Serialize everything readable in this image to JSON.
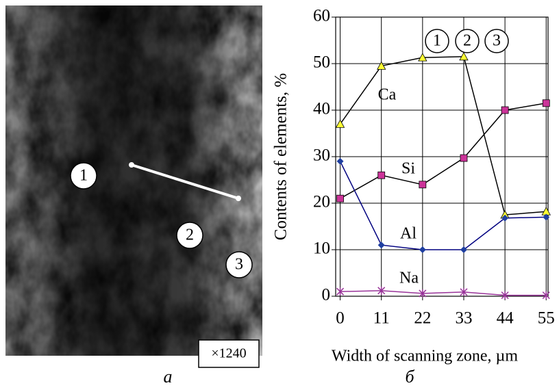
{
  "micrograph": {
    "markers": [
      "1",
      "2",
      "3"
    ],
    "magnification": "×1240"
  },
  "panel_labels": [
    "а",
    "б"
  ],
  "chart_data": {
    "type": "line",
    "y_label": "Contents of elements, %",
    "x_label": "Width of scanning zone, µm",
    "annotations": [
      "1",
      "2",
      "3"
    ],
    "x": [
      0,
      11,
      22,
      33,
      44,
      55
    ],
    "xlim": [
      -1.2,
      55.5
    ],
    "xticks": [
      0,
      11,
      22,
      33,
      44,
      55
    ],
    "ylim": [
      0,
      60
    ],
    "yticks": [
      0,
      10,
      20,
      30,
      40,
      50,
      60
    ],
    "grid": true,
    "series": [
      {
        "name": "Ca",
        "color": "#000000",
        "marker": "triangle",
        "marker_color": "#ffff33",
        "values": [
          37,
          49.5,
          51.3,
          51.5,
          17.5,
          18.2
        ]
      },
      {
        "name": "Si",
        "color": "#000000",
        "marker": "square",
        "marker_color": "#cc3399",
        "values": [
          21,
          26,
          24,
          29.7,
          40,
          41.5
        ]
      },
      {
        "name": "Al",
        "color": "#000080",
        "marker": "diamond",
        "marker_color": "#1f3fa0",
        "values": [
          29,
          11,
          10,
          10,
          16.8,
          17
        ]
      },
      {
        "name": "Na",
        "color": "#993399",
        "marker": "star",
        "marker_color": "#993399",
        "values": [
          1,
          1.2,
          0.6,
          0.9,
          0.2,
          0.2
        ]
      }
    ]
  }
}
